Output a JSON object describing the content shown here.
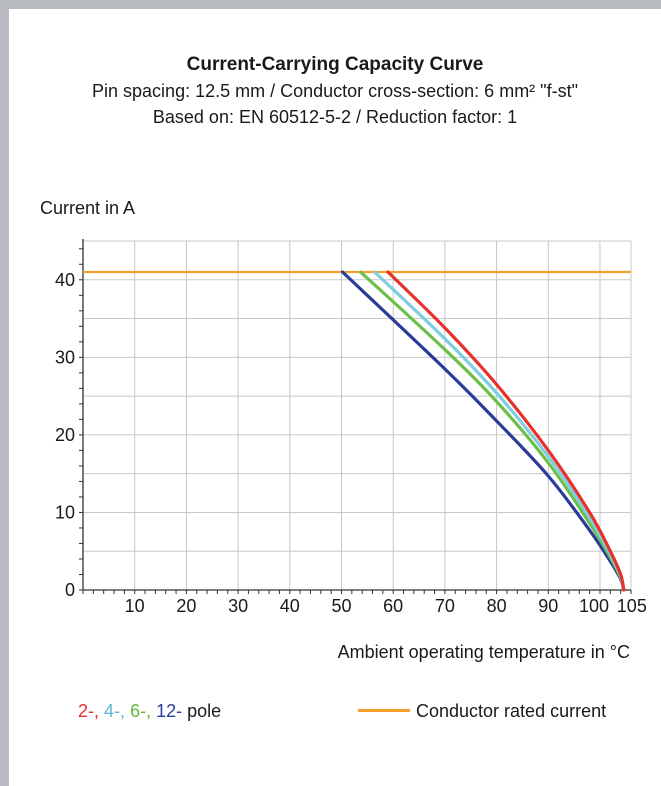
{
  "chart_data": {
    "type": "line",
    "title": "Current-Carrying Capacity Curve",
    "subtitle_1": "Pin spacing: 12.5 mm / Conductor cross-section: 6 mm² \"f-st\"",
    "subtitle_2": "Based on: EN 60512-5-2 / Reduction factor: 1",
    "ylabel": "Current in A",
    "xlabel": "Ambient operating temperature in °C",
    "xlim": [
      0,
      106
    ],
    "ylim": [
      0,
      45
    ],
    "x_ticks": [
      "10",
      "20",
      "30",
      "40",
      "50",
      "60",
      "70",
      "80",
      "90",
      "100",
      "105"
    ],
    "x_tick_values": [
      10,
      20,
      30,
      40,
      50,
      60,
      70,
      80,
      90,
      100,
      105
    ],
    "y_ticks": [
      "0",
      "10",
      "20",
      "30",
      "40"
    ],
    "y_tick_values": [
      0,
      10,
      20,
      30,
      40
    ],
    "grid": true,
    "rated_current": {
      "name": "Conductor rated current",
      "value": 41,
      "color": "#f5a028"
    },
    "series": [
      {
        "name": "2-",
        "color": "#e8312a",
        "x": [
          59,
          70,
          80,
          90,
          98,
          102,
          104,
          104.6
        ],
        "y": [
          41,
          33.8,
          26.5,
          18,
          10,
          5,
          2,
          0
        ]
      },
      {
        "name": "4-",
        "color": "#7fcde0",
        "x": [
          56.4,
          70,
          80,
          90,
          98,
          102,
          104,
          104.6
        ],
        "y": [
          41,
          32.4,
          25.4,
          17.2,
          9.3,
          4.6,
          1.8,
          0
        ]
      },
      {
        "name": "6-",
        "color": "#6cc04a",
        "x": [
          53.7,
          70,
          80,
          90,
          98,
          102,
          104,
          104.6
        ],
        "y": [
          41,
          31,
          24.3,
          16.4,
          8.6,
          4.2,
          1.6,
          0
        ]
      },
      {
        "name": "12-",
        "color": "#2a3b98",
        "x": [
          50.2,
          70,
          80,
          90,
          98,
          102,
          104,
          104.6
        ],
        "y": [
          41,
          28.5,
          21.8,
          14.7,
          7.7,
          3.7,
          1.4,
          0
        ]
      }
    ]
  },
  "legend": {
    "pole_suffix": "pole",
    "rated_label": "Conductor rated current"
  }
}
